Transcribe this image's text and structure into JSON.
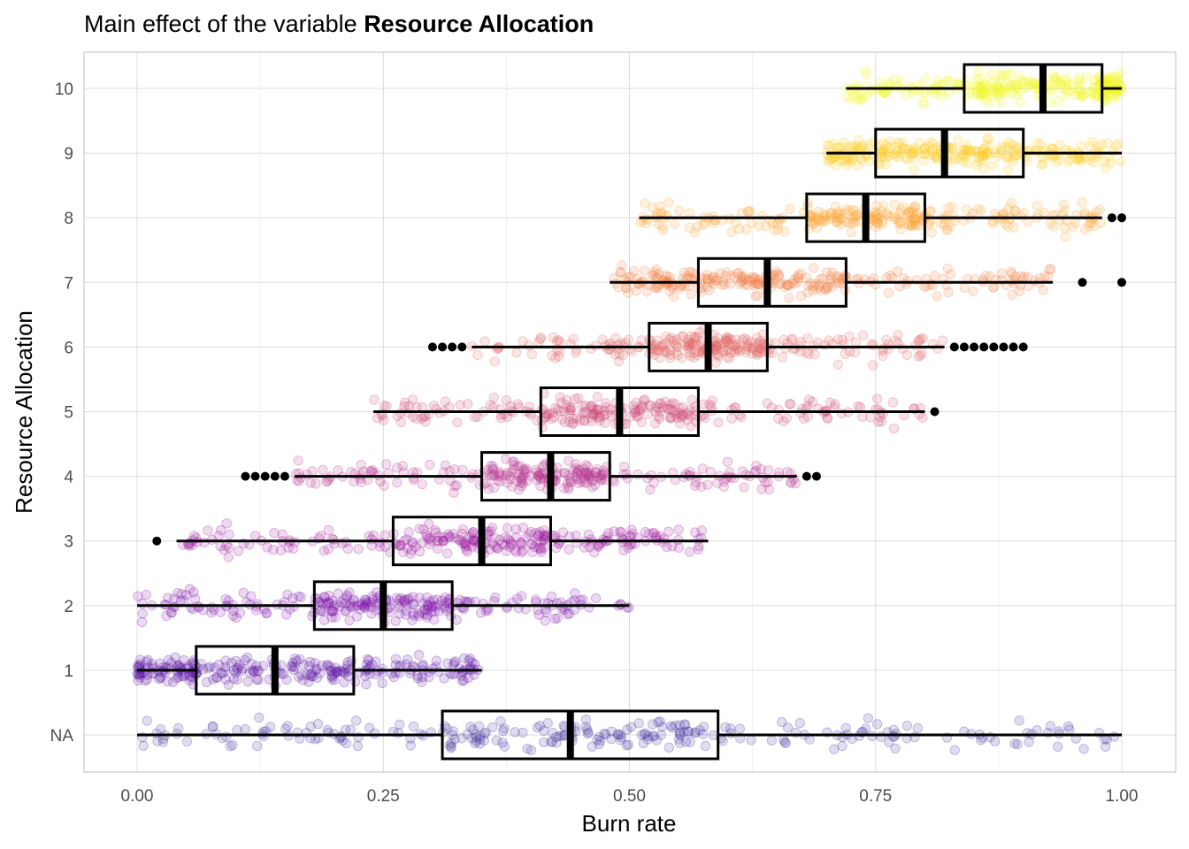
{
  "chart_data": {
    "type": "boxplot",
    "title_prefix": "Main effect of the variable ",
    "title_bold": "Resource Allocation",
    "xlabel": "Burn rate",
    "ylabel": "Resource Allocation",
    "xlim": [
      0,
      1
    ],
    "x_ticks": [
      "0.00",
      "0.25",
      "0.50",
      "0.75",
      "1.00"
    ],
    "x_tick_values": [
      0,
      0.25,
      0.5,
      0.75,
      1
    ],
    "categories": [
      "NA",
      "1",
      "2",
      "3",
      "4",
      "5",
      "6",
      "7",
      "8",
      "9",
      "10"
    ],
    "grid": true,
    "groups": [
      {
        "category": "NA",
        "color": "#3f2b9a",
        "wlo": 0.0,
        "q1": 0.31,
        "median": 0.44,
        "q3": 0.59,
        "whi": 1.0,
        "outliers": []
      },
      {
        "category": "1",
        "color": "#5a0fa3",
        "wlo": 0.0,
        "q1": 0.06,
        "median": 0.14,
        "q3": 0.22,
        "whi": 0.35,
        "outliers": []
      },
      {
        "category": "2",
        "color": "#7a10a8",
        "wlo": 0.0,
        "q1": 0.18,
        "median": 0.25,
        "q3": 0.32,
        "whi": 0.5,
        "outliers": []
      },
      {
        "category": "3",
        "color": "#9c179e",
        "wlo": 0.04,
        "q1": 0.26,
        "median": 0.35,
        "q3": 0.42,
        "whi": 0.58,
        "outliers": [
          0.02
        ]
      },
      {
        "category": "4",
        "color": "#b52f8c",
        "wlo": 0.16,
        "q1": 0.35,
        "median": 0.42,
        "q3": 0.48,
        "whi": 0.67,
        "outliers": [
          0.11,
          0.12,
          0.13,
          0.14,
          0.15,
          0.68,
          0.69
        ]
      },
      {
        "category": "5",
        "color": "#cc4778",
        "wlo": 0.24,
        "q1": 0.41,
        "median": 0.49,
        "q3": 0.57,
        "whi": 0.8,
        "outliers": [
          0.81
        ]
      },
      {
        "category": "6",
        "color": "#e16462",
        "wlo": 0.34,
        "q1": 0.52,
        "median": 0.58,
        "q3": 0.64,
        "whi": 0.82,
        "outliers": [
          0.3,
          0.31,
          0.32,
          0.33,
          0.83,
          0.84,
          0.85,
          0.86,
          0.87,
          0.88,
          0.89,
          0.9
        ]
      },
      {
        "category": "7",
        "color": "#f2844b",
        "wlo": 0.48,
        "q1": 0.57,
        "median": 0.64,
        "q3": 0.72,
        "whi": 0.93,
        "outliers": [
          0.96,
          1.0
        ]
      },
      {
        "category": "8",
        "color": "#fca636",
        "wlo": 0.51,
        "q1": 0.68,
        "median": 0.74,
        "q3": 0.8,
        "whi": 0.98,
        "outliers": [
          0.99,
          1.0
        ]
      },
      {
        "category": "9",
        "color": "#fcce25",
        "wlo": 0.7,
        "q1": 0.75,
        "median": 0.82,
        "q3": 0.9,
        "whi": 1.0,
        "outliers": []
      },
      {
        "category": "10",
        "color": "#f0f921",
        "wlo": 0.72,
        "q1": 0.84,
        "median": 0.92,
        "q3": 0.98,
        "whi": 1.0,
        "outliers": []
      }
    ]
  }
}
